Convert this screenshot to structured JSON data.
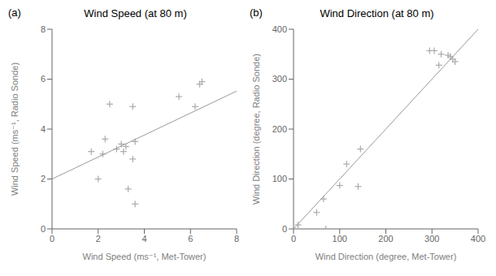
{
  "chart_data": [
    {
      "type": "scatter",
      "title": "Wind Speed (at 80 m)",
      "annotations": [
        "(a)"
      ],
      "x_label": "Wind Speed (ms⁻¹,  Met-Tower)",
      "y_label": "Wind Speed (ms⁻¹, Radio Sonde)",
      "xlim": [
        0,
        8
      ],
      "ylim": [
        0,
        8
      ],
      "xticks": [
        0,
        2,
        4,
        6,
        8
      ],
      "yticks": [
        0,
        2,
        4,
        6,
        8
      ],
      "series": [
        {
          "type": "scatter",
          "marker": "plus",
          "color": "#aaaaaa",
          "x": [
            1.7,
            2.0,
            2.2,
            2.3,
            2.5,
            2.8,
            3.0,
            3.1,
            3.2,
            3.3,
            3.5,
            3.5,
            3.6,
            3.6,
            5.5,
            6.2,
            6.4,
            6.5
          ],
          "values": [
            3.1,
            2.0,
            3.0,
            3.6,
            5.0,
            3.2,
            3.4,
            3.1,
            3.3,
            1.6,
            4.9,
            2.8,
            3.5,
            1.0,
            5.3,
            4.9,
            5.8,
            5.9
          ]
        },
        {
          "type": "line",
          "line_style": "solid",
          "color": "#999999",
          "x": [
            0,
            8
          ],
          "values": [
            2.0,
            5.52
          ]
        }
      ]
    },
    {
      "type": "scatter",
      "title": "Wind Direction (at 80 m)",
      "annotations": [
        "(b)"
      ],
      "x_label": "Wind Direction (degree,  Met-Tower)",
      "y_label": "Wind Direction (degree, Radio Sonde)",
      "xlim": [
        0,
        400
      ],
      "ylim": [
        0,
        400
      ],
      "xticks": [
        0,
        100,
        200,
        300,
        400
      ],
      "yticks": [
        0,
        100,
        200,
        300,
        400
      ],
      "series": [
        {
          "type": "scatter",
          "marker": "plus",
          "color": "#aaaaaa",
          "x": [
            10,
            50,
            65,
            70,
            100,
            115,
            140,
            145,
            295,
            305,
            315,
            320,
            335,
            340,
            345,
            350
          ],
          "values": [
            8,
            33,
            60,
            0,
            87,
            130,
            85,
            160,
            357,
            357,
            328,
            350,
            348,
            345,
            340,
            335
          ]
        },
        {
          "type": "line",
          "line_style": "solid",
          "color": "#999999",
          "x": [
            0,
            400
          ],
          "values": [
            0,
            400
          ]
        }
      ]
    }
  ]
}
